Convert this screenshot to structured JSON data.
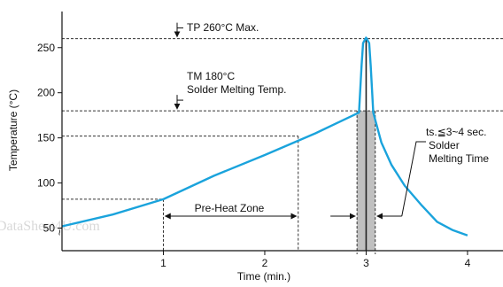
{
  "chart_data": {
    "type": "line",
    "xlabel": "Time (min.)",
    "ylabel": "Temperature (°C)",
    "xlim": [
      0,
      4.35
    ],
    "ylim": [
      25,
      290
    ],
    "x_ticks": [
      1,
      2,
      3,
      4
    ],
    "y_ticks": [
      50,
      100,
      150,
      200,
      250
    ],
    "grid": false,
    "series": [
      {
        "color": "#1aa3dc",
        "x": [
          0,
          0.5,
          1.0,
          1.5,
          2.0,
          2.5,
          2.93,
          2.955,
          2.97,
          3.0,
          3.03,
          3.045,
          3.07,
          3.15,
          3.25,
          3.38,
          3.55,
          3.7,
          3.85,
          4.0
        ],
        "y": [
          52,
          65,
          82,
          108,
          131,
          155,
          178,
          230,
          255,
          261,
          255,
          230,
          178,
          145,
          120,
          97,
          75,
          57,
          48,
          42
        ]
      }
    ],
    "reference_lines": [
      {
        "orientation": "horizontal",
        "y": 260,
        "label": "TP 260°C Max."
      },
      {
        "orientation": "horizontal",
        "y": 180,
        "label_lines": [
          "TM 180°C",
          "Solder Melting Temp."
        ]
      }
    ],
    "guides": [
      {
        "x": 1.0,
        "y": 82
      },
      {
        "x": 2.33,
        "y": 152
      }
    ],
    "solder_band": {
      "x_start": 2.91,
      "x_end": 3.09,
      "color": "#c0c0c0"
    },
    "preheat_zone": {
      "x_start": 1.0,
      "x_end": 2.33,
      "label": "Pre-Heat Zone"
    },
    "melting_note": {
      "lines": [
        "ts.≦3~4 sec.",
        "Solder",
        "Melting Time"
      ]
    },
    "axis_break_symbol": "~",
    "watermark": "DataSheet4U.com",
    "colors": {
      "curve": "#1aa3dc",
      "band": "#c0c0c0",
      "band_edge": "#333333",
      "text": "#111111"
    }
  }
}
